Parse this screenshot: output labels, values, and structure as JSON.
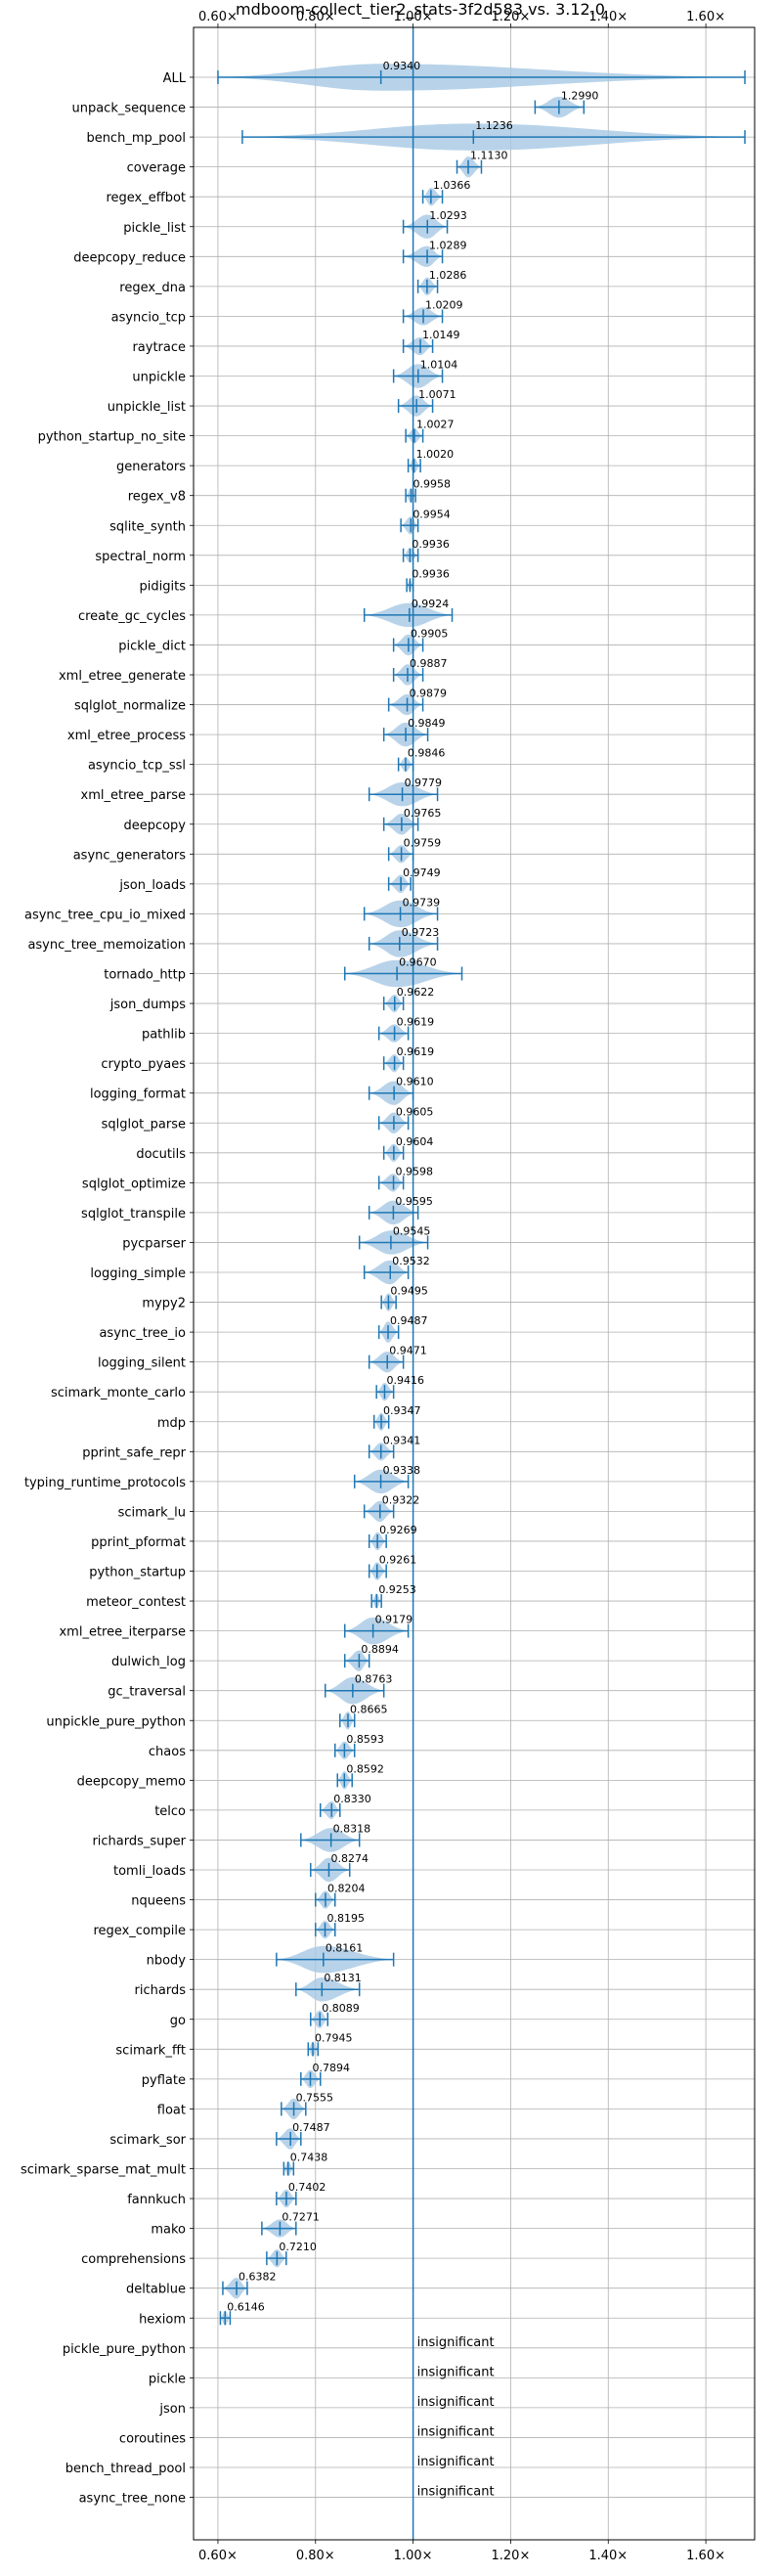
{
  "chart_data": {
    "type": "violin",
    "title": "mdboom-collect_tier2_stats-3f2d583 vs. 3.12.0",
    "xlim": [
      0.55,
      1.7
    ],
    "x_ticks": [
      0.6,
      0.8,
      1.0,
      1.2,
      1.4,
      1.6
    ],
    "x_tick_labels": [
      "0.60×",
      "0.80×",
      "1.00×",
      "1.20×",
      "1.40×",
      "1.60×"
    ],
    "reference_line": 1.0,
    "grid": true,
    "insignificant_label": "insignificant",
    "colors": {
      "violin": "#a6c8e4",
      "line": "#1f77b4",
      "grid": "#b0b0b0"
    },
    "benchmarks": [
      {
        "name": "ALL",
        "mean": 0.934,
        "label": "0.9340",
        "lo": 0.6,
        "hi": 1.68,
        "width": 0.45
      },
      {
        "name": "unpack_sequence",
        "mean": 1.299,
        "label": "1.2990",
        "lo": 1.25,
        "hi": 1.35,
        "width": 0.35
      },
      {
        "name": "bench_mp_pool",
        "mean": 1.1236,
        "label": "1.1236",
        "lo": 0.65,
        "hi": 1.68,
        "width": 0.45
      },
      {
        "name": "coverage",
        "mean": 1.113,
        "label": "1.1130",
        "lo": 1.09,
        "hi": 1.14,
        "width": 0.35
      },
      {
        "name": "regex_effbot",
        "mean": 1.0366,
        "label": "1.0366",
        "lo": 1.02,
        "hi": 1.06,
        "width": 0.3
      },
      {
        "name": "pickle_list",
        "mean": 1.0293,
        "label": "1.0293",
        "lo": 0.98,
        "hi": 1.07,
        "width": 0.4
      },
      {
        "name": "deepcopy_reduce",
        "mean": 1.0289,
        "label": "1.0289",
        "lo": 0.98,
        "hi": 1.06,
        "width": 0.35
      },
      {
        "name": "regex_dna",
        "mean": 1.0286,
        "label": "1.0286",
        "lo": 1.01,
        "hi": 1.05,
        "width": 0.3
      },
      {
        "name": "asyncio_tcp",
        "mean": 1.0209,
        "label": "1.0209",
        "lo": 0.98,
        "hi": 1.06,
        "width": 0.3
      },
      {
        "name": "raytrace",
        "mean": 1.0149,
        "label": "1.0149",
        "lo": 0.98,
        "hi": 1.04,
        "width": 0.3
      },
      {
        "name": "unpickle",
        "mean": 1.0104,
        "label": "1.0104",
        "lo": 0.96,
        "hi": 1.06,
        "width": 0.4
      },
      {
        "name": "unpickle_list",
        "mean": 1.0071,
        "label": "1.0071",
        "lo": 0.97,
        "hi": 1.04,
        "width": 0.35
      },
      {
        "name": "python_startup_no_site",
        "mean": 1.0027,
        "label": "1.0027",
        "lo": 0.985,
        "hi": 1.02,
        "width": 0.25
      },
      {
        "name": "generators",
        "mean": 1.002,
        "label": "1.0020",
        "lo": 0.99,
        "hi": 1.015,
        "width": 0.25
      },
      {
        "name": "regex_v8",
        "mean": 0.9958,
        "label": "0.9958",
        "lo": 0.985,
        "hi": 1.005,
        "width": 0.25
      },
      {
        "name": "sqlite_synth",
        "mean": 0.9954,
        "label": "0.9954",
        "lo": 0.975,
        "hi": 1.01,
        "width": 0.3
      },
      {
        "name": "spectral_norm",
        "mean": 0.9936,
        "label": "0.9936",
        "lo": 0.98,
        "hi": 1.01,
        "width": 0.25
      },
      {
        "name": "pidigits",
        "mean": 0.9936,
        "label": "0.9936",
        "lo": 0.987,
        "hi": 1.0,
        "width": 0.2
      },
      {
        "name": "create_gc_cycles",
        "mean": 0.9924,
        "label": "0.9924",
        "lo": 0.9,
        "hi": 1.08,
        "width": 0.4
      },
      {
        "name": "pickle_dict",
        "mean": 0.9905,
        "label": "0.9905",
        "lo": 0.96,
        "hi": 1.02,
        "width": 0.35
      },
      {
        "name": "xml_etree_generate",
        "mean": 0.9887,
        "label": "0.9887",
        "lo": 0.96,
        "hi": 1.02,
        "width": 0.35
      },
      {
        "name": "sqlglot_normalize",
        "mean": 0.9879,
        "label": "0.9879",
        "lo": 0.95,
        "hi": 1.02,
        "width": 0.35
      },
      {
        "name": "xml_etree_process",
        "mean": 0.9849,
        "label": "0.9849",
        "lo": 0.94,
        "hi": 1.03,
        "width": 0.4
      },
      {
        "name": "asyncio_tcp_ssl",
        "mean": 0.9846,
        "label": "0.9846",
        "lo": 0.97,
        "hi": 1.0,
        "width": 0.25
      },
      {
        "name": "xml_etree_parse",
        "mean": 0.9779,
        "label": "0.9779",
        "lo": 0.91,
        "hi": 1.05,
        "width": 0.4
      },
      {
        "name": "deepcopy",
        "mean": 0.9765,
        "label": "0.9765",
        "lo": 0.94,
        "hi": 1.01,
        "width": 0.35
      },
      {
        "name": "async_generators",
        "mean": 0.9759,
        "label": "0.9759",
        "lo": 0.95,
        "hi": 1.0,
        "width": 0.3
      },
      {
        "name": "json_loads",
        "mean": 0.9749,
        "label": "0.9749",
        "lo": 0.95,
        "hi": 0.995,
        "width": 0.3
      },
      {
        "name": "async_tree_cpu_io_mixed",
        "mean": 0.9739,
        "label": "0.9739",
        "lo": 0.9,
        "hi": 1.05,
        "width": 0.45
      },
      {
        "name": "async_tree_memoization",
        "mean": 0.9723,
        "label": "0.9723",
        "lo": 0.91,
        "hi": 1.05,
        "width": 0.45
      },
      {
        "name": "tornado_http",
        "mean": 0.967,
        "label": "0.9670",
        "lo": 0.86,
        "hi": 1.1,
        "width": 0.45
      },
      {
        "name": "json_dumps",
        "mean": 0.9622,
        "label": "0.9622",
        "lo": 0.94,
        "hi": 0.98,
        "width": 0.3
      },
      {
        "name": "pathlib",
        "mean": 0.9619,
        "label": "0.9619",
        "lo": 0.93,
        "hi": 0.99,
        "width": 0.3
      },
      {
        "name": "crypto_pyaes",
        "mean": 0.9619,
        "label": "0.9619",
        "lo": 0.94,
        "hi": 0.98,
        "width": 0.3
      },
      {
        "name": "logging_format",
        "mean": 0.961,
        "label": "0.9610",
        "lo": 0.91,
        "hi": 1.0,
        "width": 0.4
      },
      {
        "name": "sqlglot_parse",
        "mean": 0.9605,
        "label": "0.9605",
        "lo": 0.93,
        "hi": 0.99,
        "width": 0.35
      },
      {
        "name": "docutils",
        "mean": 0.9604,
        "label": "0.9604",
        "lo": 0.94,
        "hi": 0.98,
        "width": 0.3
      },
      {
        "name": "sqlglot_optimize",
        "mean": 0.9598,
        "label": "0.9598",
        "lo": 0.93,
        "hi": 0.98,
        "width": 0.3
      },
      {
        "name": "sqlglot_transpile",
        "mean": 0.9595,
        "label": "0.9595",
        "lo": 0.91,
        "hi": 1.01,
        "width": 0.4
      },
      {
        "name": "pycparser",
        "mean": 0.9545,
        "label": "0.9545",
        "lo": 0.89,
        "hi": 1.03,
        "width": 0.4
      },
      {
        "name": "logging_simple",
        "mean": 0.9532,
        "label": "0.9532",
        "lo": 0.9,
        "hi": 0.99,
        "width": 0.4
      },
      {
        "name": "mypy2",
        "mean": 0.9495,
        "label": "0.9495",
        "lo": 0.935,
        "hi": 0.965,
        "width": 0.3
      },
      {
        "name": "async_tree_io",
        "mean": 0.9487,
        "label": "0.9487",
        "lo": 0.93,
        "hi": 0.97,
        "width": 0.35
      },
      {
        "name": "logging_silent",
        "mean": 0.9471,
        "label": "0.9471",
        "lo": 0.91,
        "hi": 0.98,
        "width": 0.35
      },
      {
        "name": "scimark_monte_carlo",
        "mean": 0.9416,
        "label": "0.9416",
        "lo": 0.925,
        "hi": 0.96,
        "width": 0.3
      },
      {
        "name": "mdp",
        "mean": 0.9347,
        "label": "0.9347",
        "lo": 0.92,
        "hi": 0.95,
        "width": 0.3
      },
      {
        "name": "pprint_safe_repr",
        "mean": 0.9341,
        "label": "0.9341",
        "lo": 0.91,
        "hi": 0.96,
        "width": 0.3
      },
      {
        "name": "typing_runtime_protocols",
        "mean": 0.9338,
        "label": "0.9338",
        "lo": 0.88,
        "hi": 0.99,
        "width": 0.4
      },
      {
        "name": "scimark_lu",
        "mean": 0.9322,
        "label": "0.9322",
        "lo": 0.9,
        "hi": 0.96,
        "width": 0.35
      },
      {
        "name": "pprint_pformat",
        "mean": 0.9269,
        "label": "0.9269",
        "lo": 0.91,
        "hi": 0.945,
        "width": 0.3
      },
      {
        "name": "python_startup",
        "mean": 0.9261,
        "label": "0.9261",
        "lo": 0.91,
        "hi": 0.945,
        "width": 0.3
      },
      {
        "name": "meteor_contest",
        "mean": 0.9253,
        "label": "0.9253",
        "lo": 0.915,
        "hi": 0.935,
        "width": 0.25
      },
      {
        "name": "xml_etree_iterparse",
        "mean": 0.9179,
        "label": "0.9179",
        "lo": 0.86,
        "hi": 0.99,
        "width": 0.45
      },
      {
        "name": "dulwich_log",
        "mean": 0.8894,
        "label": "0.8894",
        "lo": 0.86,
        "hi": 0.91,
        "width": 0.35
      },
      {
        "name": "gc_traversal",
        "mean": 0.8763,
        "label": "0.8763",
        "lo": 0.82,
        "hi": 0.94,
        "width": 0.45
      },
      {
        "name": "unpickle_pure_python",
        "mean": 0.8665,
        "label": "0.8665",
        "lo": 0.85,
        "hi": 0.88,
        "width": 0.3
      },
      {
        "name": "chaos",
        "mean": 0.8593,
        "label": "0.8593",
        "lo": 0.84,
        "hi": 0.88,
        "width": 0.3
      },
      {
        "name": "deepcopy_memo",
        "mean": 0.8592,
        "label": "0.8592",
        "lo": 0.845,
        "hi": 0.875,
        "width": 0.3
      },
      {
        "name": "telco",
        "mean": 0.833,
        "label": "0.8330",
        "lo": 0.81,
        "hi": 0.85,
        "width": 0.3
      },
      {
        "name": "richards_super",
        "mean": 0.8318,
        "label": "0.8318",
        "lo": 0.77,
        "hi": 0.89,
        "width": 0.4
      },
      {
        "name": "tomli_loads",
        "mean": 0.8274,
        "label": "0.8274",
        "lo": 0.79,
        "hi": 0.87,
        "width": 0.4
      },
      {
        "name": "nqueens",
        "mean": 0.8204,
        "label": "0.8204",
        "lo": 0.8,
        "hi": 0.84,
        "width": 0.3
      },
      {
        "name": "regex_compile",
        "mean": 0.8195,
        "label": "0.8195",
        "lo": 0.8,
        "hi": 0.84,
        "width": 0.3
      },
      {
        "name": "nbody",
        "mean": 0.8161,
        "label": "0.8161",
        "lo": 0.72,
        "hi": 0.96,
        "width": 0.45
      },
      {
        "name": "richards",
        "mean": 0.8131,
        "label": "0.8131",
        "lo": 0.76,
        "hi": 0.89,
        "width": 0.4
      },
      {
        "name": "go",
        "mean": 0.8089,
        "label": "0.8089",
        "lo": 0.79,
        "hi": 0.825,
        "width": 0.3
      },
      {
        "name": "scimark_fft",
        "mean": 0.7945,
        "label": "0.7945",
        "lo": 0.785,
        "hi": 0.805,
        "width": 0.25
      },
      {
        "name": "pyflate",
        "mean": 0.7894,
        "label": "0.7894",
        "lo": 0.77,
        "hi": 0.81,
        "width": 0.3
      },
      {
        "name": "float",
        "mean": 0.7555,
        "label": "0.7555",
        "lo": 0.73,
        "hi": 0.78,
        "width": 0.35
      },
      {
        "name": "scimark_sor",
        "mean": 0.7487,
        "label": "0.7487",
        "lo": 0.72,
        "hi": 0.77,
        "width": 0.35
      },
      {
        "name": "scimark_sparse_mat_mult",
        "mean": 0.7438,
        "label": "0.7438",
        "lo": 0.735,
        "hi": 0.755,
        "width": 0.25
      },
      {
        "name": "fannkuch",
        "mean": 0.7402,
        "label": "0.7402",
        "lo": 0.72,
        "hi": 0.76,
        "width": 0.3
      },
      {
        "name": "mako",
        "mean": 0.7271,
        "label": "0.7271",
        "lo": 0.69,
        "hi": 0.76,
        "width": 0.3
      },
      {
        "name": "comprehensions",
        "mean": 0.721,
        "label": "0.7210",
        "lo": 0.7,
        "hi": 0.74,
        "width": 0.3
      },
      {
        "name": "deltablue",
        "mean": 0.6382,
        "label": "0.6382",
        "lo": 0.61,
        "hi": 0.66,
        "width": 0.35
      },
      {
        "name": "hexiom",
        "mean": 0.6146,
        "label": "0.6146",
        "lo": 0.605,
        "hi": 0.625,
        "width": 0.25
      },
      {
        "name": "pickle_pure_python",
        "insignificant": true
      },
      {
        "name": "pickle",
        "insignificant": true
      },
      {
        "name": "json",
        "insignificant": true
      },
      {
        "name": "coroutines",
        "insignificant": true
      },
      {
        "name": "bench_thread_pool",
        "insignificant": true
      },
      {
        "name": "async_tree_none",
        "insignificant": true
      }
    ]
  }
}
